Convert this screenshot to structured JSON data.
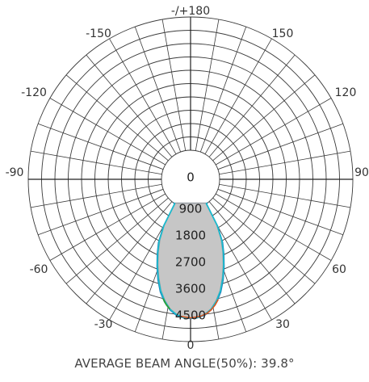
{
  "chart_data": {
    "type": "polar",
    "title": "",
    "footer": "AVERAGE BEAM ANGLE(50%): 39.8°",
    "angle_ticks": [
      {
        "angle": 180,
        "label": "-/+180"
      },
      {
        "angle": -150,
        "label": "-150"
      },
      {
        "angle": 150,
        "label": "150"
      },
      {
        "angle": -120,
        "label": "-120"
      },
      {
        "angle": 120,
        "label": "120"
      },
      {
        "angle": -90,
        "label": "-90"
      },
      {
        "angle": 90,
        "label": "90"
      },
      {
        "angle": -60,
        "label": "-60"
      },
      {
        "angle": 60,
        "label": "60"
      },
      {
        "angle": -30,
        "label": "-30"
      },
      {
        "angle": 30,
        "label": "30"
      },
      {
        "angle": 0,
        "label": "0"
      }
    ],
    "radial_ticks": [
      {
        "value": 0,
        "label": "0"
      },
      {
        "value": 900,
        "label": "900"
      },
      {
        "value": 1800,
        "label": "1800"
      },
      {
        "value": 2700,
        "label": "2700"
      },
      {
        "value": 3600,
        "label": "3600"
      },
      {
        "value": 4500,
        "label": "4500"
      }
    ],
    "r_inner": 900,
    "r_max": 5400,
    "angular_grid_step_deg": 10,
    "radial_grid_step": 450,
    "grid": true,
    "series": [
      {
        "color": "#9aa0a6",
        "fill": "#c6c6c6",
        "points": [
          [
            -35,
            0
          ],
          [
            -33,
            800
          ],
          [
            -30,
            1700
          ],
          [
            -27,
            2200
          ],
          [
            -24,
            2600
          ],
          [
            -21,
            3000
          ],
          [
            -18,
            3400
          ],
          [
            -15,
            3800
          ],
          [
            -12,
            4100
          ],
          [
            -9,
            4350
          ],
          [
            -6,
            4500
          ],
          [
            -3,
            4580
          ],
          [
            0,
            4600
          ],
          [
            3,
            4580
          ],
          [
            6,
            4500
          ],
          [
            9,
            4350
          ],
          [
            12,
            4100
          ],
          [
            15,
            3800
          ],
          [
            18,
            3400
          ],
          [
            21,
            3000
          ],
          [
            24,
            2600
          ],
          [
            27,
            2200
          ],
          [
            30,
            1700
          ],
          [
            33,
            800
          ],
          [
            35,
            0
          ]
        ]
      },
      {
        "color": "#1f77b4",
        "points": [
          [
            -36,
            0
          ],
          [
            -33,
            880
          ],
          [
            -30,
            1750
          ],
          [
            -27,
            2300
          ],
          [
            -24,
            2680
          ],
          [
            -21,
            3080
          ],
          [
            -18,
            3480
          ],
          [
            -15,
            3860
          ],
          [
            -12,
            4150
          ],
          [
            -9,
            4380
          ],
          [
            -6,
            4530
          ],
          [
            -3,
            4600
          ],
          [
            0,
            4620
          ],
          [
            3,
            4600
          ],
          [
            6,
            4530
          ],
          [
            9,
            4380
          ],
          [
            12,
            4150
          ],
          [
            15,
            3860
          ],
          [
            18,
            3480
          ],
          [
            21,
            3080
          ],
          [
            24,
            2680
          ],
          [
            27,
            2300
          ],
          [
            30,
            1750
          ],
          [
            33,
            880
          ],
          [
            36,
            0
          ]
        ]
      },
      {
        "color": "#17becf",
        "points": [
          [
            -35,
            0
          ],
          [
            -33,
            820
          ],
          [
            -30,
            1720
          ],
          [
            -27,
            2250
          ],
          [
            -24,
            2640
          ],
          [
            -21,
            3040
          ],
          [
            -18,
            3440
          ],
          [
            -15,
            3820
          ],
          [
            -12,
            4120
          ],
          [
            -9,
            4360
          ],
          [
            -6,
            4510
          ],
          [
            -3,
            4590
          ],
          [
            0,
            4610
          ],
          [
            3,
            4590
          ],
          [
            6,
            4510
          ],
          [
            9,
            4360
          ],
          [
            12,
            4120
          ],
          [
            15,
            3820
          ],
          [
            18,
            3440
          ],
          [
            21,
            3040
          ],
          [
            24,
            2640
          ],
          [
            27,
            2250
          ],
          [
            30,
            1720
          ],
          [
            33,
            820
          ],
          [
            35,
            0
          ]
        ]
      },
      {
        "color": "#d9541e",
        "points": [
          [
            -4,
            4560
          ],
          [
            0,
            4600
          ],
          [
            4,
            4560
          ],
          [
            7,
            4480
          ],
          [
            9,
            4380
          ],
          [
            11,
            4250
          ],
          [
            13,
            4080
          ]
        ]
      },
      {
        "color": "#2ca02c",
        "points": [
          [
            -13,
            4050
          ],
          [
            -11,
            4230
          ],
          [
            -9,
            4360
          ]
        ]
      }
    ]
  }
}
